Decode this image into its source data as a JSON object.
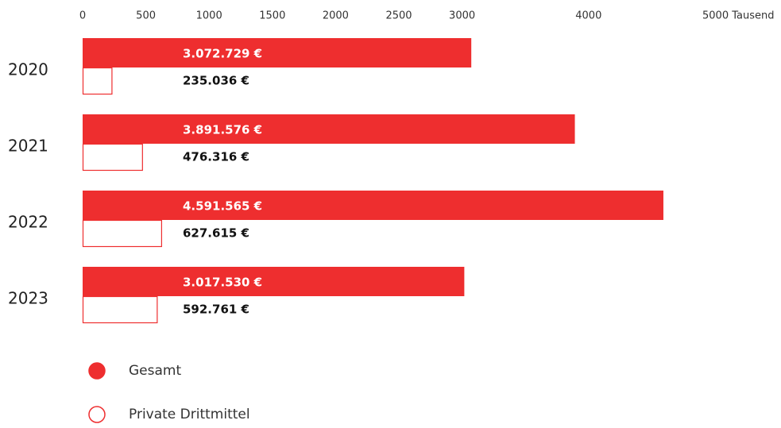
{
  "chart_data": {
    "type": "bar",
    "orientation": "horizontal",
    "categories": [
      "2020",
      "2021",
      "2022",
      "2023"
    ],
    "series": [
      {
        "name": "Gesamt",
        "color": "#ee2e2f",
        "fill": true,
        "values": [
          3072.729,
          3891.576,
          4591.565,
          3017.53
        ],
        "value_labels": [
          "3.072.729 €",
          "3.891.576 €",
          "4.591.565 €",
          "3.017.530 €"
        ]
      },
      {
        "name": "Private Drittmittel",
        "color": "#ee2e2f",
        "fill": false,
        "values": [
          235.036,
          476.316,
          627.615,
          592.761
        ],
        "value_labels": [
          "235.036 €",
          "476.316 €",
          "627.615 €",
          "592.761 €"
        ]
      }
    ],
    "xlim": [
      0,
      5000
    ],
    "xticks": [
      0,
      500,
      1000,
      1500,
      2000,
      2500,
      3000,
      4000,
      {
        "value": 5000,
        "label": "5000 Tausend"
      }
    ]
  }
}
